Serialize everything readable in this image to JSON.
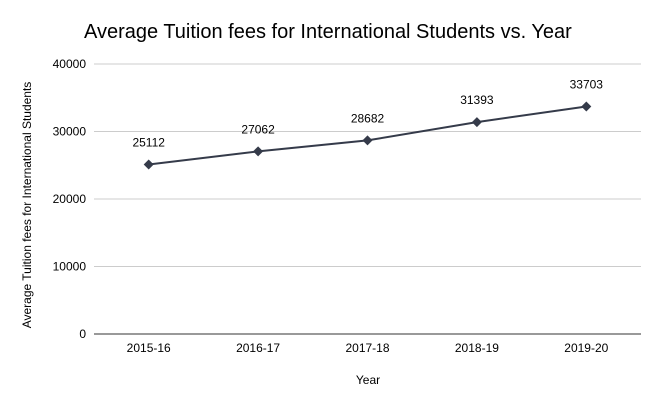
{
  "chart_data": {
    "type": "line",
    "title": "Average Tuition fees for International Students vs. Year",
    "xlabel": "Year",
    "ylabel": "Average Tuition fees for International Students",
    "categories": [
      "2015-16",
      "2016-17",
      "2017-18",
      "2018-19",
      "2019-20"
    ],
    "values": [
      25112,
      27062,
      28682,
      31393,
      33703
    ],
    "data_labels": [
      "25112",
      "27062",
      "28682",
      "31393",
      "33703"
    ],
    "ylim": [
      0,
      40000
    ],
    "yticks": [
      "0",
      "10000",
      "20000",
      "30000",
      "40000"
    ],
    "ytick_values": [
      0,
      10000,
      20000,
      30000,
      40000
    ],
    "grid": true,
    "legend": "none",
    "marker": "diamond",
    "color": "#353b4a"
  }
}
